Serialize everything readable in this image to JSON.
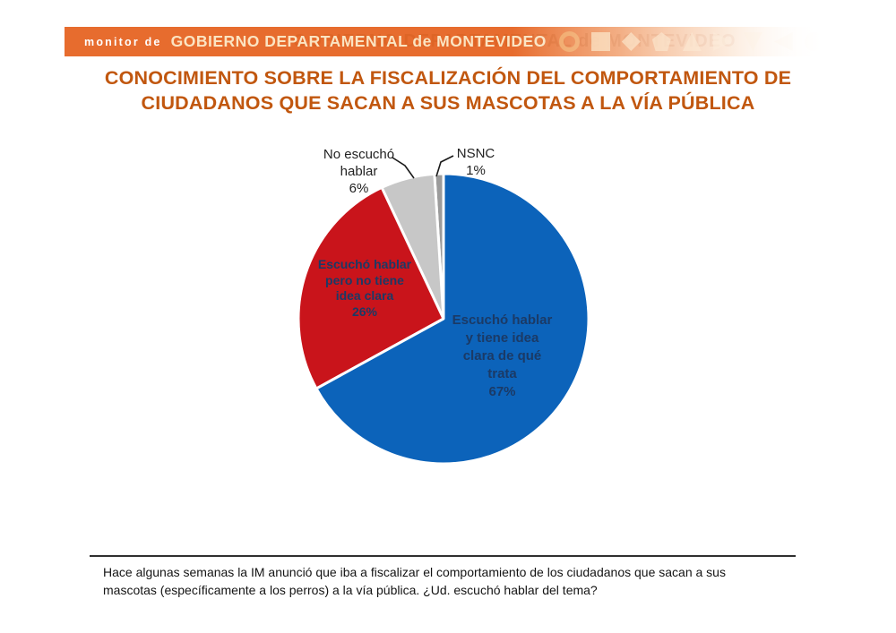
{
  "banner": {
    "prefix": "monitor de",
    "title": "GOBIERNO DEPARTAMENTAL de MONTEVIDEO",
    "shapes": [
      "ring",
      "square",
      "diamond",
      "pentagon",
      "triangle-up",
      "triangle-right",
      "triangle-down",
      "triangle-left",
      "circle"
    ]
  },
  "page_title": "CONOCIMIENTO SOBRE LA FISCALIZACIÓN DEL COMPORTAMIENTO DE CIUDADANOS QUE SACAN A SUS MASCOTAS A LA VÍA PÚBLICA",
  "theme": {
    "banner_orange": "#e76c2e",
    "title_color": "#c1570f",
    "slice_label_color": "#1b3a66",
    "outer_label_color": "#222222"
  },
  "chart_data": {
    "type": "pie",
    "direction": "clockwise",
    "start_angle_deg": 0,
    "legend_position": "none",
    "slices": [
      {
        "label": "Escuchó hablar y tiene idea clara de qué trata",
        "value": 67,
        "percent_text": "67%",
        "color": "#0c63ba",
        "display": "Escuchó hablar\ny tiene idea\nclara de qué\ntrata\n67%"
      },
      {
        "label": "Escuchó hablar pero no tiene idea clara",
        "value": 26,
        "percent_text": "26%",
        "color": "#c9141b",
        "display": "Escuchó hablar\npero no tiene\nidea clara\n26%"
      },
      {
        "label": "No escuchó hablar",
        "value": 6,
        "percent_text": "6%",
        "color": "#c7c7c7",
        "display": "No escuchó\nhablar\n6%"
      },
      {
        "label": "NSNC",
        "value": 1,
        "percent_text": "1%",
        "color": "#9b9b9b",
        "display": "NSNC\n1%"
      }
    ]
  },
  "question": {
    "text": "Hace algunas semanas la IM anunció que iba a fiscalizar el comportamiento de los ciudadanos que sacan a sus mascotas (específicamente a los perros) a la vía pública. ¿Ud. escuchó hablar del tema?"
  }
}
